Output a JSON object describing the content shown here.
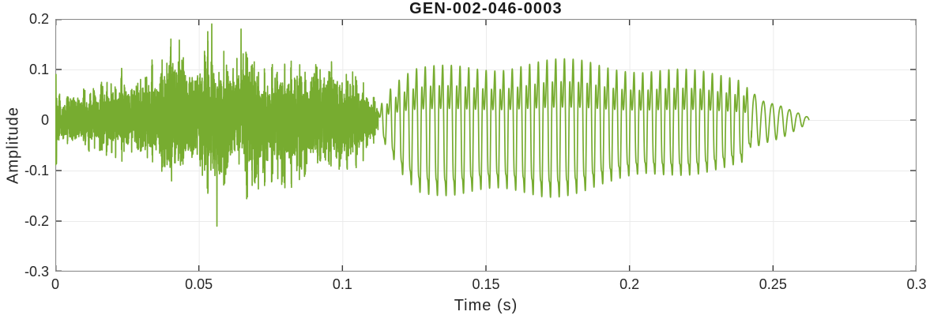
{
  "chart_data": {
    "type": "line",
    "title": "GEN-002-046-0003",
    "xlabel": "Time (s)",
    "ylabel": "Amplitude",
    "xlim": [
      0,
      0.3
    ],
    "ylim": [
      -0.3,
      0.2
    ],
    "xticks": [
      0,
      0.05,
      0.1,
      0.15,
      0.2,
      0.25,
      0.3
    ],
    "xtick_labels": [
      "0",
      "0.05",
      "0.1",
      "0.15",
      "0.2",
      "0.25",
      "0.3"
    ],
    "yticks": [
      -0.3,
      -0.2,
      -0.1,
      0,
      0.1,
      0.2
    ],
    "ytick_labels": [
      "-0.3",
      "-0.2",
      "-0.1",
      "0",
      "0.1",
      "0.2"
    ],
    "grid": true,
    "legend": false,
    "box": true,
    "tick_direction": "in",
    "colors": {
      "line": "#77AC30",
      "spine": "#8C8C8C",
      "tick": "#3A3A3A",
      "grid": "#EBEBEB",
      "text": "#262626",
      "title": "#1A1A1A",
      "background": "#FFFFFF"
    },
    "signal": {
      "description": "speech-like waveform: unvoiced noise burst (0 to 0.113 s), quasi-periodic voiced vowel (0.113 to 0.2425 s), decaying sinusoidal tail ending near 0.2625 s",
      "voiced_start_s": 0.1125,
      "decay_start_s": 0.2425,
      "end_time_s": 0.2625,
      "f0_hz": 330,
      "envelope": {
        "t": [
          0.0,
          0.003,
          0.01,
          0.018,
          0.026,
          0.034,
          0.042,
          0.05,
          0.0545,
          0.0565,
          0.06,
          0.0647,
          0.07,
          0.076,
          0.082,
          0.088,
          0.094,
          0.1,
          0.106,
          0.1125,
          0.1165,
          0.121,
          0.126,
          0.14,
          0.155,
          0.17,
          0.185,
          0.195,
          0.205,
          0.215,
          0.225,
          0.234,
          0.24,
          0.2425,
          0.245,
          0.249,
          0.253,
          0.257,
          0.26,
          0.2625
        ],
        "hi": [
          0.095,
          0.06,
          0.07,
          0.075,
          0.095,
          0.12,
          0.15,
          0.14,
          0.19,
          0.15,
          0.13,
          0.18,
          0.115,
          0.11,
          0.115,
          0.11,
          0.13,
          0.105,
          0.09,
          0.035,
          0.095,
          0.13,
          0.145,
          0.15,
          0.145,
          0.155,
          0.16,
          0.15,
          0.14,
          0.14,
          0.14,
          0.135,
          0.125,
          0.075,
          0.05,
          0.042,
          0.034,
          0.022,
          0.014,
          0.006
        ],
        "lo": [
          -0.085,
          -0.055,
          -0.065,
          -0.07,
          -0.08,
          -0.095,
          -0.11,
          -0.12,
          -0.145,
          -0.21,
          -0.13,
          -0.12,
          -0.15,
          -0.12,
          -0.135,
          -0.115,
          -0.1,
          -0.1,
          -0.085,
          -0.035,
          -0.095,
          -0.15,
          -0.185,
          -0.19,
          -0.185,
          -0.185,
          -0.175,
          -0.165,
          -0.145,
          -0.14,
          -0.14,
          -0.135,
          -0.125,
          -0.075,
          -0.048,
          -0.04,
          -0.034,
          -0.022,
          -0.013,
          -0.006
        ]
      },
      "spikes": [
        {
          "t": 0.0545,
          "v": 0.19
        },
        {
          "t": 0.0563,
          "v": -0.21
        },
        {
          "t": 0.0647,
          "v": 0.18
        },
        {
          "t": 0.0432,
          "v": 0.158
        }
      ]
    }
  }
}
